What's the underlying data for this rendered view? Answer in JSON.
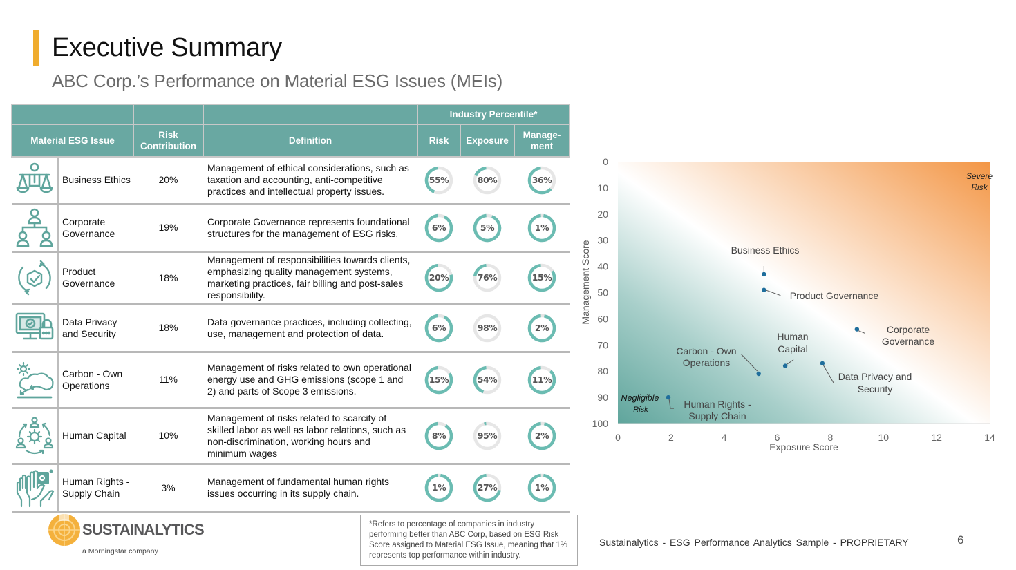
{
  "header": {
    "title": "Executive Summary",
    "subtitle": "ABC Corp.’s Performance on Material ESG Issues (MEIs)",
    "accent_color": "#f0ac2e"
  },
  "table": {
    "header_color": "#69a8a2",
    "ring_color": "#6bbcb2",
    "ring_track_color": "#e6e6e6",
    "group_header": "Industry Percentile*",
    "columns": {
      "issue": "Material ESG Issue",
      "contribution": "Risk Contribution",
      "definition": "Definition",
      "risk": "Risk",
      "exposure": "Exposure",
      "management": "Manage-ment"
    },
    "rows": [
      {
        "icon": "scales-person-icon",
        "issue": "Business Ethics",
        "contribution": "20%",
        "definition": "Management of ethical considerations, such as taxation and accounting, anti-competitive practices and intellectual property issues.",
        "risk": 55,
        "exposure": 80,
        "management": 36
      },
      {
        "icon": "org-chart-icon",
        "issue": "Corporate Governance",
        "contribution": "19%",
        "definition": "Corporate Governance represents foundational structures for the management of ESG risks.",
        "risk": 6,
        "exposure": 5,
        "management": 1
      },
      {
        "icon": "product-cycle-icon",
        "issue": "Product Governance",
        "contribution": "18%",
        "definition": "Management of responsibilities towards clients, emphasizing quality management systems, marketing practices, fair billing and post-sales responsibility.",
        "risk": 20,
        "exposure": 76,
        "management": 15
      },
      {
        "icon": "monitor-lock-icon",
        "issue": "Data Privacy and Security",
        "contribution": "18%",
        "definition": "Data governance practices, including collecting, use, management and protection of data.",
        "risk": 6,
        "exposure": 98,
        "management": 2
      },
      {
        "icon": "sun-cloud-icon",
        "issue": "Carbon - Own Operations",
        "contribution": "11%",
        "definition": "Management of risks related to own operational energy use and GHG emissions (scope 1 and 2) and parts of Scope 3 emissions.",
        "risk": 15,
        "exposure": 54,
        "management": 11
      },
      {
        "icon": "people-gear-cycle-icon",
        "issue": "Human Capital",
        "contribution": "10%",
        "definition": "Management of risks related to scarcity of skilled labor as well as labor relations, such as non-discrimination, working hours and minimum wages",
        "risk": 8,
        "exposure": 95,
        "management": 2
      },
      {
        "icon": "raised-hands-icon",
        "issue": "Human Rights - Supply Chain",
        "contribution": "3%",
        "definition": "Management of fundamental human rights issues occurring in its supply chain.",
        "risk": 1,
        "exposure": 27,
        "management": 1
      }
    ]
  },
  "chart_data": {
    "type": "scatter",
    "title": "",
    "xlabel": "Exposure Score",
    "ylabel": "Management Score",
    "xlim": [
      0,
      14
    ],
    "ylim": [
      100,
      0
    ],
    "y_inverted": true,
    "xticks": [
      0,
      2,
      4,
      6,
      8,
      10,
      12,
      14
    ],
    "yticks": [
      0,
      10,
      20,
      30,
      40,
      50,
      60,
      70,
      80,
      90,
      100
    ],
    "grid": false,
    "background": "diagonal gradient from teal (low risk, bottom-left) through white to orange (high risk, top-right)",
    "colors": {
      "low": "#5fa59c",
      "high": "#f39645",
      "point": "#1f6e9c"
    },
    "corner_labels": {
      "top_right": "Severe Risk",
      "bottom_left": "Negligible Risk"
    },
    "points": [
      {
        "label": "Business Ethics",
        "x": 5.5,
        "y": 43
      },
      {
        "label": "Product Governance",
        "x": 5.5,
        "y": 49
      },
      {
        "label": "Corporate Governance",
        "x": 9.0,
        "y": 64
      },
      {
        "label": "Human Capital",
        "x": 6.3,
        "y": 78
      },
      {
        "label": "Data Privacy and Security",
        "x": 7.7,
        "y": 77
      },
      {
        "label": "Carbon - Own Operations",
        "x": 5.3,
        "y": 81
      },
      {
        "label": "Human Rights - Supply Chain",
        "x": 1.9,
        "y": 90
      }
    ]
  },
  "footer": {
    "logo_text": "SUSTAINALYTICS",
    "logo_sub": "a Morningstar company",
    "footnote": "*Refers to percentage of companies in industry performing better than ABC Corp, based on ESG Risk Score assigned to Material ESG Issue, meaning that 1% represents top performance within industry.",
    "doc_label": "Sustainalytics - ESG Performance Analytics Sample - PROPRIETARY",
    "page_number": "6"
  }
}
